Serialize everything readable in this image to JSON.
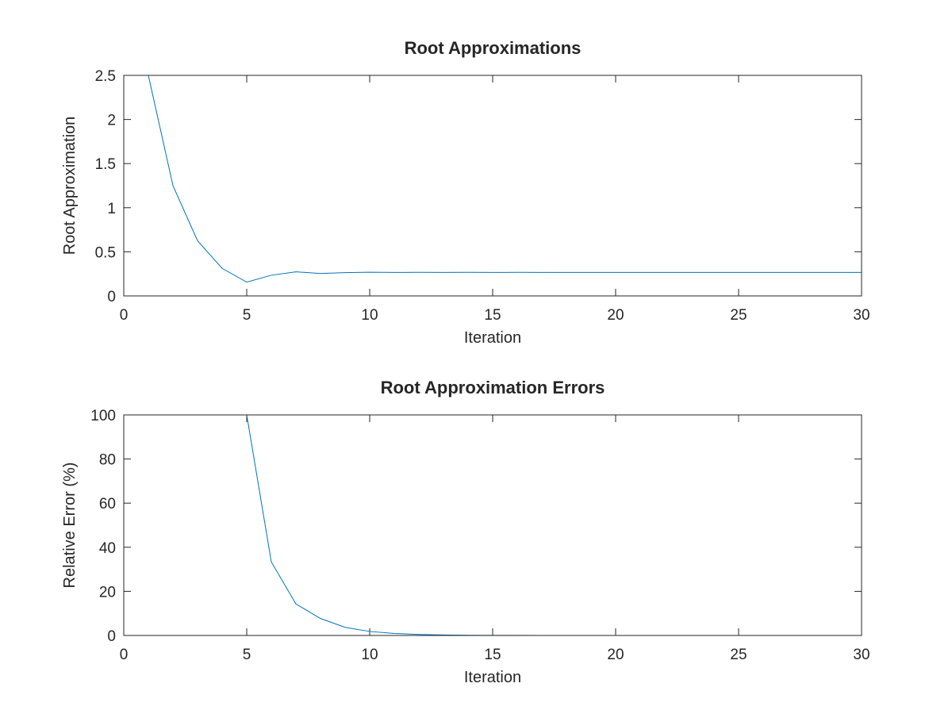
{
  "chart_data": [
    {
      "type": "line",
      "title": "Root Approximations",
      "xlabel": "Iteration",
      "ylabel": "Root Approximation",
      "xlim": [
        0,
        30
      ],
      "ylim": [
        0,
        2.5
      ],
      "xticks": [
        "0",
        "5",
        "10",
        "15",
        "20",
        "25",
        "30"
      ],
      "yticks": [
        "0",
        "0.5",
        "1",
        "1.5",
        "2",
        "2.5"
      ],
      "grid": false,
      "series": [
        {
          "color": "#0072bd",
          "x": [
            1,
            2,
            3,
            4,
            5,
            6,
            7,
            8,
            9,
            10,
            11,
            12,
            13,
            14,
            15,
            16,
            17,
            18,
            19,
            20,
            21,
            22,
            23,
            24,
            25,
            26,
            27,
            28,
            29,
            30
          ],
          "values": [
            2.5,
            1.25,
            0.625,
            0.3125,
            0.15625,
            0.234375,
            0.2734375,
            0.25390625,
            0.263671875,
            0.2685546875,
            0.2661132813,
            0.2673339844,
            0.2667236328,
            0.2670288086,
            0.2668762207,
            0.2669525146,
            0.2669143677,
            0.2669334412,
            0.2669239044,
            0.2669286728,
            0.2669262886,
            0.2669274807,
            0.2669268847,
            0.2669271827,
            0.2669270337,
            0.2669271082,
            0.2669270709,
            0.2669270896,
            0.2669270802,
            0.2669270849
          ]
        }
      ]
    },
    {
      "type": "line",
      "title": "Root Approximation Errors",
      "xlabel": "Iteration",
      "ylabel": "Relative Error (%)",
      "xlim": [
        0,
        30
      ],
      "ylim": [
        0,
        100
      ],
      "xticks": [
        "0",
        "5",
        "10",
        "15",
        "20",
        "25",
        "30"
      ],
      "yticks": [
        "0",
        "20",
        "40",
        "60",
        "80",
        "100"
      ],
      "grid": false,
      "series": [
        {
          "color": "#0072bd",
          "x": [
            1,
            2,
            3,
            4,
            5,
            6,
            7,
            8,
            9,
            10,
            11,
            12,
            13,
            14,
            15,
            16,
            17,
            18,
            19,
            20,
            21,
            22,
            23,
            24,
            25,
            26,
            27,
            28,
            29,
            30
          ],
          "values": [
            100,
            100,
            100,
            100,
            100,
            33.33,
            14.29,
            7.69,
            3.7,
            1.82,
            0.92,
            0.46,
            0.23,
            0.11,
            0.06,
            0.03,
            0.01,
            0.007,
            0.004,
            0.002,
            0.001,
            0.0004,
            0.0002,
            0.0001,
            6e-05,
            3e-05,
            1e-05,
            7e-06,
            3e-06,
            2e-06
          ]
        }
      ]
    }
  ]
}
